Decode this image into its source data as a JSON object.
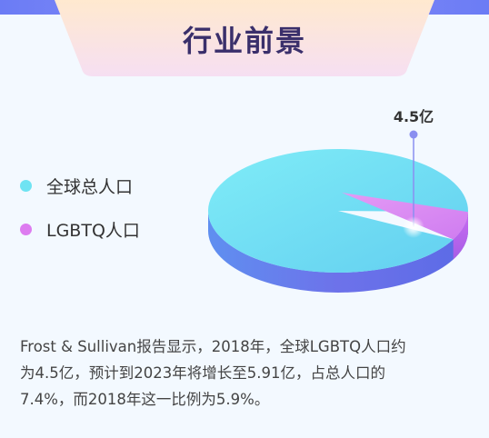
{
  "header": {
    "title": "行业前景"
  },
  "chart_data": {
    "type": "pie",
    "categories": [
      "全球总人口",
      "LGBTQ人口"
    ],
    "values": [
      92.6,
      7.4
    ],
    "annotations": [
      {
        "text": "4.5亿",
        "target": "LGBTQ人口"
      }
    ],
    "colors": [
      "#78e6f5",
      "#d67ef2"
    ],
    "legend_position": "left"
  },
  "legend": {
    "items": [
      {
        "label": "全球总人口",
        "color": "#6fe3f2"
      },
      {
        "label": "LGBTQ人口",
        "color": "#dd7cf0"
      }
    ]
  },
  "description": {
    "lines": [
      "Frost & Sullivan报告显示，2018年，全球LGBTQ人口约",
      "为4.5亿，预计到2023年将增长至5.91亿，占总人口的",
      "7.4%，而2018年这一比例为5.9%。"
    ]
  }
}
